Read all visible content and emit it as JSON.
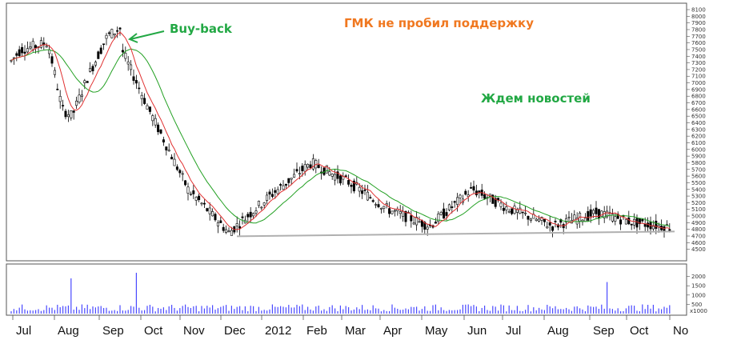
{
  "chart_data": [
    {
      "type": "candlestick",
      "title": "ГМК не пробил поддержку",
      "ylim": [
        4400,
        8100
      ],
      "y_ticks": [
        4500,
        4600,
        4700,
        4800,
        4900,
        5000,
        5100,
        5200,
        5300,
        5400,
        5500,
        5600,
        5700,
        5800,
        5900,
        6000,
        6100,
        6200,
        6300,
        6400,
        6500,
        6600,
        6700,
        6800,
        6900,
        7000,
        7100,
        7200,
        7300,
        7400,
        7500,
        7600,
        7700,
        7800,
        7900,
        8000,
        8100
      ],
      "x_labels": [
        "Jul",
        "Aug",
        "Sep",
        "Oct",
        "Nov",
        "Dec",
        "2012",
        "Feb",
        "Mar",
        "Apr",
        "May",
        "Jun",
        "Jul",
        "Aug",
        "Sep",
        "Oct",
        "No"
      ],
      "close_approx": [
        {
          "period": "Jul",
          "value": 7500
        },
        {
          "period": "Aug",
          "value": 6600
        },
        {
          "period": "Sep",
          "value": 7700
        },
        {
          "period": "Oct",
          "value": 6600
        },
        {
          "period": "Nov",
          "value": 5400
        },
        {
          "period": "Dec",
          "value": 4750
        },
        {
          "period": "2012",
          "value": 5300
        },
        {
          "period": "Feb",
          "value": 5800
        },
        {
          "period": "Mar",
          "value": 5500
        },
        {
          "period": "Apr",
          "value": 5100
        },
        {
          "period": "May",
          "value": 4850
        },
        {
          "period": "Jun",
          "value": 5400
        },
        {
          "period": "Jul",
          "value": 5100
        },
        {
          "period": "Aug",
          "value": 4850
        },
        {
          "period": "Sep",
          "value": 5050
        },
        {
          "period": "Oct",
          "value": 4900
        },
        {
          "period": "No",
          "value": 4820
        }
      ],
      "support_level": 4720,
      "series": [
        {
          "name": "",
          "color": "#d62728"
        },
        {
          "name": "",
          "color": "#2ca02c"
        }
      ],
      "annotations": {
        "buyback": "Buy-back",
        "title_text": "ГМК не пробил поддержку",
        "wait_news": "Ждем новостей"
      },
      "colors": {
        "candles": "#000000",
        "fast_ma": "#e03030",
        "slow_ma": "#22a022",
        "support": "#b0b0b0",
        "title": "#f07820",
        "buyback": "#22a844",
        "wait": "#22a844",
        "volume": "#4a4aff"
      }
    },
    {
      "type": "bar",
      "ylim": [
        0,
        2500
      ],
      "y_ticks": [
        500,
        1000,
        1500,
        2000
      ],
      "y_tick_labels": [
        "500",
        "1000",
        "1500",
        "2000"
      ],
      "unit_label": "x1000",
      "peaks": [
        {
          "period": "Aug",
          "value": 1900
        },
        {
          "period": "Sep",
          "value": 2200
        },
        {
          "period": "Sep",
          "value": 1700
        }
      ]
    }
  ]
}
